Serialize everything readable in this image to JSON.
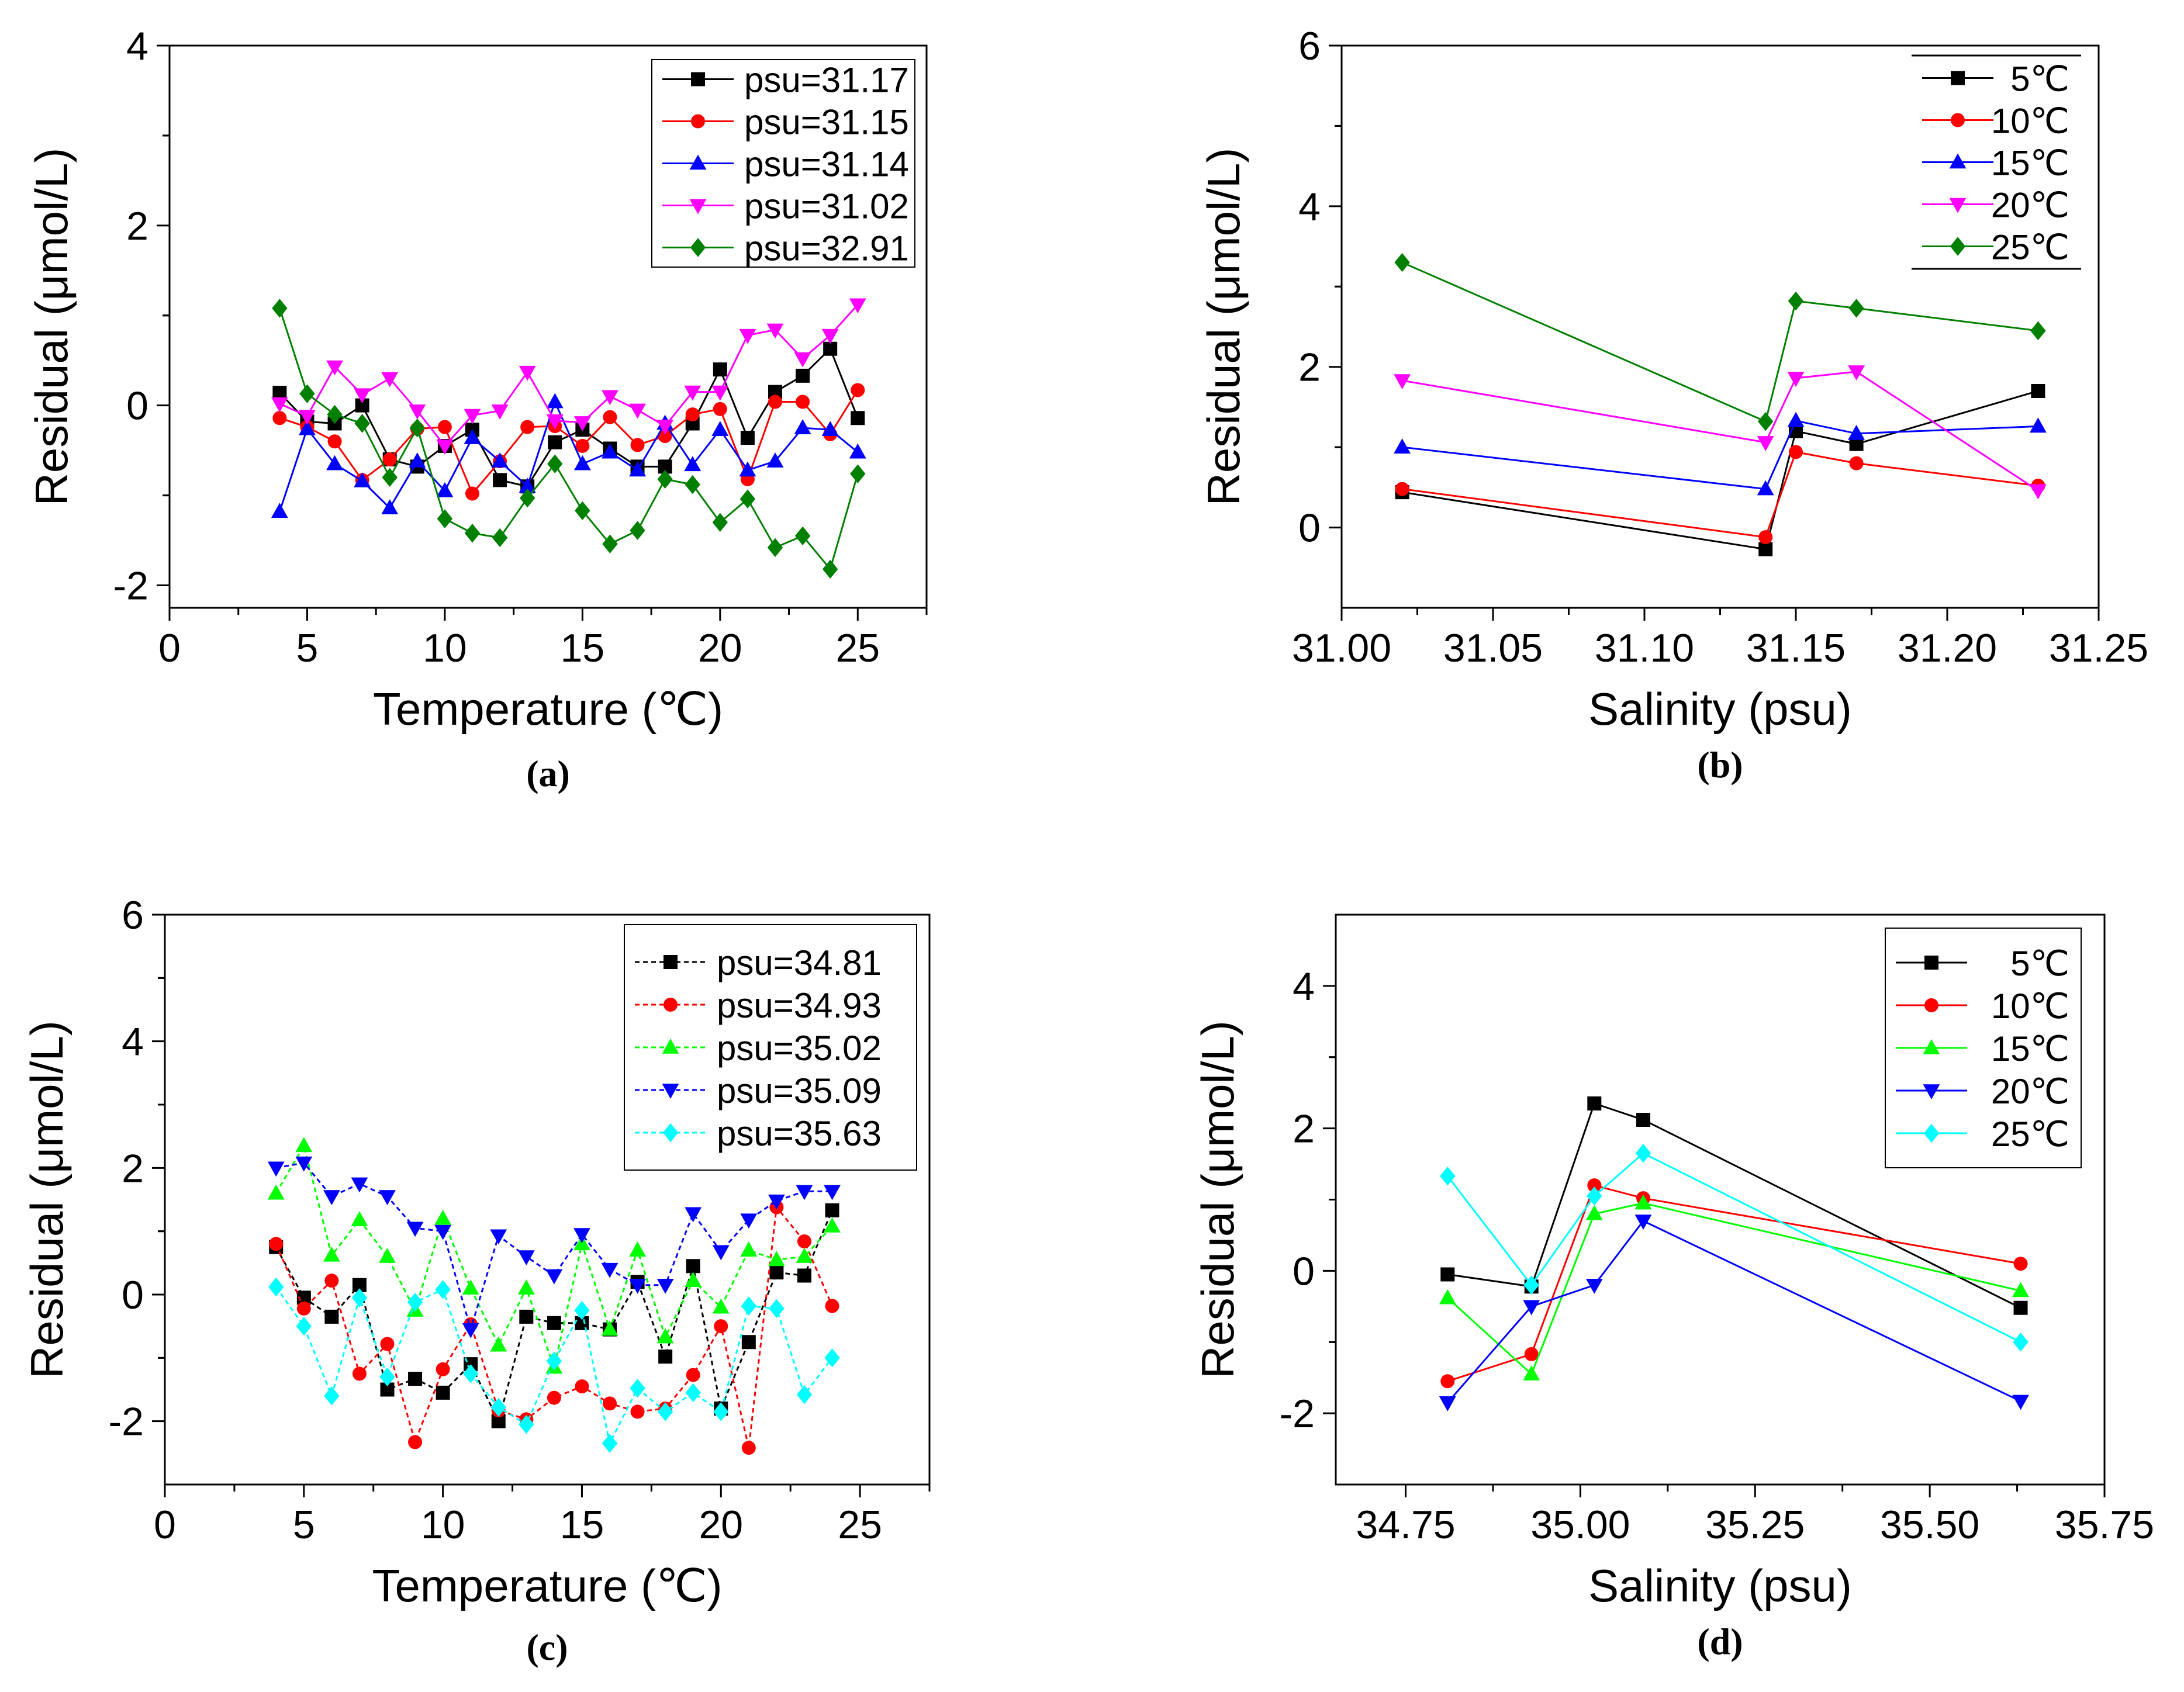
{
  "chart_data": [
    {
      "id": "a",
      "type": "line",
      "caption": "(a)",
      "xlabel": "Temperature (℃)",
      "ylabel": "Residual (μmol/L)",
      "xlim": [
        0,
        27.5
      ],
      "ylim": [
        -2.25,
        4
      ],
      "xticks": [
        0,
        5,
        10,
        15,
        20,
        25
      ],
      "yticks": [
        -2,
        0,
        2,
        4
      ],
      "legend_position": "top-right",
      "x": [
        4,
        5,
        6,
        7,
        8,
        9,
        10,
        11,
        12,
        13,
        14,
        15,
        16,
        17,
        18,
        19,
        20,
        21,
        22,
        23,
        24,
        25
      ],
      "series": [
        {
          "name": "psu=31.17",
          "color": "#000000",
          "marker": "square",
          "dashed": false,
          "values": [
            0.14,
            -0.18,
            -0.2,
            0.0,
            -0.6,
            -0.68,
            -0.45,
            -0.27,
            -0.83,
            -0.9,
            -0.41,
            -0.27,
            -0.48,
            -0.68,
            -0.68,
            -0.2,
            0.4,
            -0.36,
            0.15,
            0.33,
            0.63,
            -0.14
          ]
        },
        {
          "name": "psu=31.15",
          "color": "#ff0000",
          "marker": "circle",
          "dashed": false,
          "values": [
            -0.14,
            -0.24,
            -0.4,
            -0.83,
            -0.6,
            -0.26,
            -0.24,
            -0.98,
            -0.62,
            -0.24,
            -0.23,
            -0.45,
            -0.13,
            -0.44,
            -0.34,
            -0.1,
            -0.04,
            -0.82,
            0.04,
            0.04,
            -0.32,
            0.17
          ]
        },
        {
          "name": "psu=31.14",
          "color": "#0000ff",
          "marker": "triangle-up",
          "dashed": false,
          "values": [
            -1.18,
            -0.26,
            -0.65,
            -0.84,
            -1.14,
            -0.62,
            -0.95,
            -0.36,
            -0.62,
            -0.9,
            0.04,
            -0.65,
            -0.52,
            -0.72,
            -0.2,
            -0.66,
            -0.27,
            -0.72,
            -0.62,
            -0.25,
            -0.27,
            -0.52
          ]
        },
        {
          "name": "psu=31.02",
          "color": "#ff00ff",
          "marker": "triangle-down",
          "dashed": false,
          "values": [
            0.02,
            -0.12,
            0.43,
            0.12,
            0.3,
            -0.06,
            -0.45,
            -0.11,
            -0.06,
            0.37,
            -0.17,
            -0.19,
            0.1,
            -0.05,
            -0.23,
            0.15,
            0.15,
            0.78,
            0.84,
            0.52,
            0.78,
            1.12
          ]
        },
        {
          "name": "psu=32.91",
          "color": "#008000",
          "marker": "diamond",
          "dashed": false,
          "values": [
            1.08,
            0.13,
            -0.1,
            -0.2,
            -0.8,
            -0.25,
            -1.26,
            -1.42,
            -1.47,
            -1.03,
            -0.65,
            -1.17,
            -1.54,
            -1.39,
            -0.82,
            -0.88,
            -1.3,
            -1.04,
            -1.58,
            -1.45,
            -1.82,
            -0.76
          ]
        }
      ]
    },
    {
      "id": "b",
      "type": "line",
      "caption": "(b)",
      "xlabel": "Salinity (psu)",
      "ylabel": "Residual (μmol/L)",
      "xlim": [
        31.0,
        31.25
      ],
      "ylim": [
        -1,
        6
      ],
      "xticks": [
        "31.00",
        "31.05",
        "31.10",
        "31.15",
        "31.20",
        "31.25"
      ],
      "yticks": [
        0,
        2,
        4,
        6
      ],
      "legend_position": "top-right",
      "x": [
        31.02,
        31.14,
        31.15,
        31.17,
        31.23
      ],
      "series": [
        {
          "name": "5℃",
          "color": "#000000",
          "marker": "square",
          "dashed": false,
          "values": [
            0.44,
            -0.27,
            1.2,
            1.04,
            1.7
          ]
        },
        {
          "name": "10℃",
          "color": "#ff0000",
          "marker": "circle",
          "dashed": false,
          "values": [
            0.48,
            -0.12,
            0.94,
            0.8,
            0.52
          ]
        },
        {
          "name": "15℃",
          "color": "#0000ff",
          "marker": "triangle-up",
          "dashed": false,
          "values": [
            1.0,
            0.48,
            1.33,
            1.17,
            1.26
          ]
        },
        {
          "name": "20℃",
          "color": "#ff00ff",
          "marker": "triangle-down",
          "dashed": false,
          "values": [
            1.83,
            1.06,
            1.86,
            1.94,
            0.46
          ]
        },
        {
          "name": "25℃",
          "color": "#008000",
          "marker": "diamond",
          "dashed": false,
          "values": [
            3.3,
            1.32,
            2.82,
            2.73,
            2.45
          ]
        }
      ]
    },
    {
      "id": "c",
      "type": "line",
      "caption": "(c)",
      "xlabel": "Temperature (℃)",
      "ylabel": "Residual (μmol/L)",
      "xlim": [
        0,
        27.5
      ],
      "ylim": [
        -3,
        6
      ],
      "xticks": [
        0,
        5,
        10,
        15,
        20,
        25
      ],
      "yticks": [
        -2,
        0,
        2,
        4,
        6
      ],
      "legend_position": "top-right",
      "x": [
        4,
        5,
        6,
        7,
        8,
        9,
        10,
        11,
        12,
        13,
        14,
        15,
        16,
        17,
        18,
        19,
        20,
        21,
        22,
        23,
        24
      ],
      "series": [
        {
          "name": "psu=34.81",
          "color": "#000000",
          "marker": "square",
          "dashed": true,
          "values": [
            0.75,
            -0.05,
            -0.35,
            0.15,
            -1.5,
            -1.33,
            -1.55,
            -1.1,
            -2.0,
            -0.35,
            -0.45,
            -0.45,
            -0.55,
            0.2,
            -0.98,
            0.45,
            -1.8,
            -0.75,
            0.35,
            0.3,
            1.33
          ]
        },
        {
          "name": "psu=34.93",
          "color": "#ff0000",
          "marker": "circle",
          "dashed": true,
          "values": [
            0.8,
            -0.22,
            0.22,
            -1.25,
            -0.78,
            -2.33,
            -1.18,
            -0.47,
            -1.83,
            -1.97,
            -1.63,
            -1.45,
            -1.72,
            -1.85,
            -1.8,
            -1.27,
            -0.5,
            -2.42,
            1.38,
            0.84,
            -0.18
          ]
        },
        {
          "name": "psu=35.02",
          "color": "#00ff00",
          "marker": "triangle-up",
          "dashed": true,
          "values": [
            1.6,
            2.35,
            0.62,
            1.18,
            0.6,
            -0.25,
            1.2,
            0.1,
            -0.8,
            0.1,
            -1.15,
            0.8,
            -0.55,
            0.7,
            -0.67,
            0.22,
            -0.2,
            0.7,
            0.55,
            0.6,
            1.08
          ]
        },
        {
          "name": "psu=35.09",
          "color": "#0000ff",
          "marker": "triangle-down",
          "dashed": true,
          "values": [
            2.0,
            2.08,
            1.55,
            1.75,
            1.55,
            1.05,
            1.0,
            -0.55,
            0.93,
            0.6,
            0.3,
            0.95,
            0.4,
            0.15,
            0.15,
            1.28,
            0.68,
            1.18,
            1.48,
            1.63,
            1.63
          ]
        },
        {
          "name": "psu=35.63",
          "color": "#00ffff",
          "marker": "diamond",
          "dashed": true,
          "values": [
            0.12,
            -0.5,
            -1.6,
            -0.05,
            -1.3,
            -0.12,
            0.08,
            -1.25,
            -1.78,
            -2.05,
            -1.05,
            -0.25,
            -2.35,
            -1.48,
            -1.85,
            -1.55,
            -1.85,
            -0.18,
            -0.22,
            -1.58,
            -1.0
          ]
        }
      ]
    },
    {
      "id": "d",
      "type": "line",
      "caption": "(d)",
      "xlabel": "Salinity (psu)",
      "ylabel": "Residual (μmol/L)",
      "xlim": [
        34.65,
        35.75
      ],
      "ylim": [
        -3,
        5
      ],
      "xticks": [
        "34.75",
        "35.00",
        "35.25",
        "35.50",
        "35.75"
      ],
      "yticks": [
        -2,
        0,
        2,
        4
      ],
      "legend_position": "top-right",
      "x": [
        34.81,
        34.93,
        35.02,
        35.09,
        35.63
      ],
      "series": [
        {
          "name": "5℃",
          "color": "#000000",
          "marker": "square",
          "dashed": false,
          "values": [
            -0.05,
            -0.22,
            2.35,
            2.12,
            -0.52
          ]
        },
        {
          "name": "10℃",
          "color": "#ff0000",
          "marker": "circle",
          "dashed": false,
          "values": [
            -1.55,
            -1.17,
            1.2,
            1.02,
            0.1
          ]
        },
        {
          "name": "15℃",
          "color": "#00ff00",
          "marker": "triangle-up",
          "dashed": false,
          "values": [
            -0.38,
            -1.45,
            0.8,
            0.95,
            -0.28
          ]
        },
        {
          "name": "20℃",
          "color": "#0000ff",
          "marker": "triangle-down",
          "dashed": false,
          "values": [
            -1.85,
            -0.5,
            -0.2,
            0.7,
            -1.83
          ]
        },
        {
          "name": "25℃",
          "color": "#00ffff",
          "marker": "diamond",
          "dashed": false,
          "values": [
            1.33,
            -0.2,
            1.05,
            1.65,
            -1.0
          ]
        }
      ]
    }
  ]
}
